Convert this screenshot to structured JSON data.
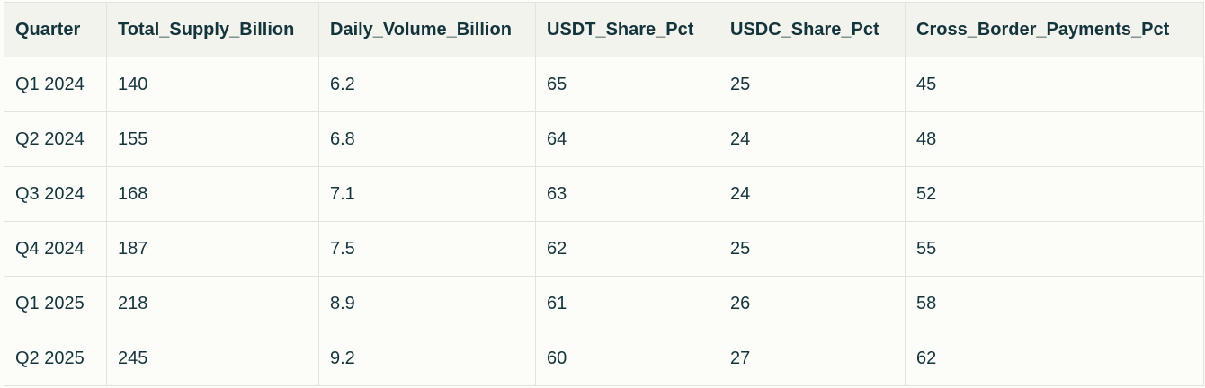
{
  "table": {
    "columns": [
      "Quarter",
      "Total_Supply_Billion",
      "Daily_Volume_Billion",
      "USDT_Share_Pct",
      "USDC_Share_Pct",
      "Cross_Border_Payments_Pct"
    ],
    "rows": [
      [
        "Q1 2024",
        "140",
        "6.2",
        "65",
        "25",
        "45"
      ],
      [
        "Q2 2024",
        "155",
        "6.8",
        "64",
        "24",
        "48"
      ],
      [
        "Q3 2024",
        "168",
        "7.1",
        "63",
        "24",
        "52"
      ],
      [
        "Q4 2024",
        "187",
        "7.5",
        "62",
        "25",
        "55"
      ],
      [
        "Q1 2025",
        "218",
        "8.9",
        "61",
        "26",
        "58"
      ],
      [
        "Q2 2025",
        "245",
        "9.2",
        "60",
        "27",
        "62"
      ]
    ]
  },
  "colors": {
    "header_bg": "#f3f3ee",
    "row_bg": "#fcfcf9",
    "border": "#e3e3dd",
    "text": "#13343b"
  }
}
